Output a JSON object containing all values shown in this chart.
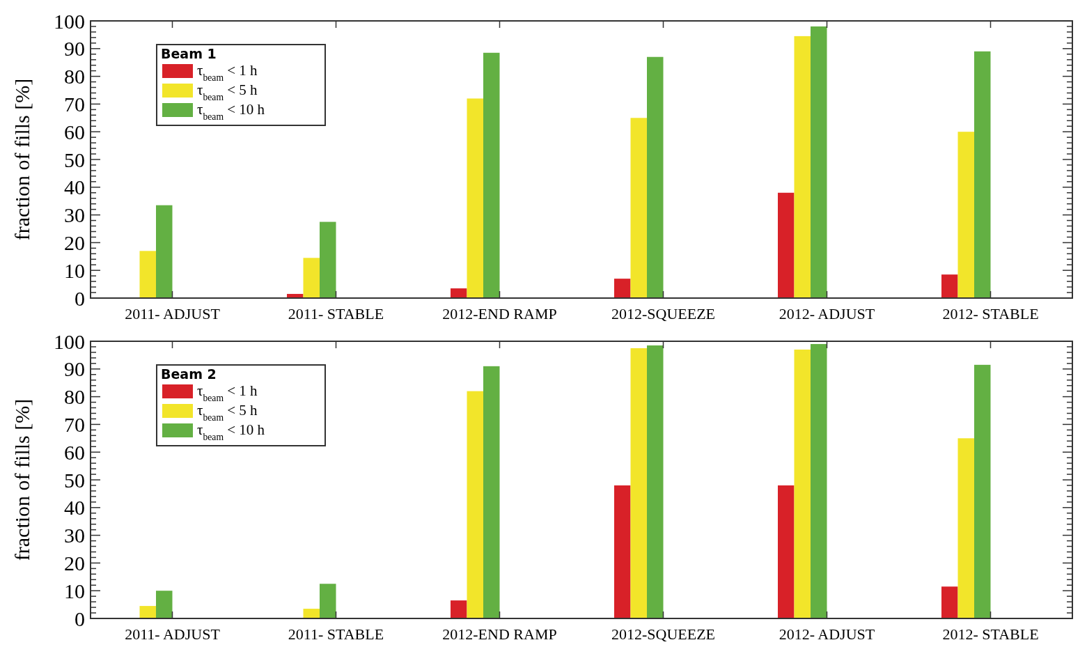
{
  "chart_data": [
    {
      "type": "bar",
      "legend_title": "Beam 1",
      "ylabel": "fraction of fills [%]",
      "categories": [
        "2011- ADJUST",
        "2011- STABLE",
        "2012-END RAMP",
        "2012-SQUEEZE",
        "2012- ADJUST",
        "2012- STABLE"
      ],
      "series": [
        {
          "name": "τ$_{beam}$ < 1 h",
          "color": "#d82128",
          "values": [
            0,
            1.5,
            3.5,
            7,
            38,
            8.5
          ]
        },
        {
          "name": "τ$_{beam}$ < 5 h",
          "color": "#f2e52a",
          "values": [
            17,
            14.5,
            72,
            65,
            94.5,
            60
          ]
        },
        {
          "name": "τ$_{beam}$ < 10 h",
          "color": "#63b043",
          "values": [
            33.5,
            27.5,
            88.5,
            87,
            98,
            89
          ]
        }
      ],
      "ylim": [
        0,
        100
      ],
      "yticks": [
        0,
        {
          "value": 2,
          "label": null
        },
        {
          "value": 4,
          "label": null
        },
        {
          "value": 6,
          "label": null
        },
        {
          "value": 8,
          "label": null
        },
        10,
        {
          "value": 12,
          "label": null
        },
        {
          "value": 14,
          "label": null
        },
        {
          "value": 16,
          "label": null
        },
        {
          "value": 18,
          "label": null
        },
        20,
        {
          "value": 22,
          "label": null
        },
        {
          "value": 24,
          "label": null
        },
        {
          "value": 26,
          "label": null
        },
        {
          "value": 28,
          "label": null
        },
        30,
        {
          "value": 32,
          "label": null
        },
        {
          "value": 34,
          "label": null
        },
        {
          "value": 36,
          "label": null
        },
        {
          "value": 38,
          "label": null
        },
        40,
        {
          "value": 42,
          "label": null
        },
        {
          "value": 44,
          "label": null
        },
        {
          "value": 46,
          "label": null
        },
        {
          "value": 48,
          "label": null
        },
        50,
        {
          "value": 52,
          "label": null
        },
        {
          "value": 54,
          "label": null
        },
        {
          "value": 56,
          "label": null
        },
        {
          "value": 58,
          "label": null
        },
        60,
        {
          "value": 62,
          "label": null
        },
        {
          "value": 64,
          "label": null
        },
        {
          "value": 66,
          "label": null
        },
        {
          "value": 68,
          "label": null
        },
        70,
        {
          "value": 72,
          "label": null
        },
        {
          "value": 74,
          "label": null
        },
        {
          "value": 76,
          "label": null
        },
        {
          "value": 78,
          "label": null
        },
        80,
        {
          "value": 82,
          "label": null
        },
        {
          "value": 84,
          "label": null
        },
        {
          "value": 86,
          "label": null
        },
        {
          "value": 88,
          "label": null
        },
        90,
        {
          "value": 92,
          "label": null
        },
        {
          "value": 94,
          "label": null
        },
        {
          "value": 96,
          "label": null
        },
        {
          "value": 98,
          "label": null
        },
        100
      ],
      "legend": "top left",
      "grid": false
    },
    {
      "type": "bar",
      "legend_title": "Beam 2",
      "ylabel": "fraction of fills [%]",
      "categories": [
        "2011- ADJUST",
        "2011- STABLE",
        "2012-END RAMP",
        "2012-SQUEEZE",
        "2012- ADJUST",
        "2012- STABLE"
      ],
      "series": [
        {
          "name": "τ$_{beam}$ < 1 h",
          "color": "#d82128",
          "values": [
            null,
            0,
            6.5,
            48,
            48,
            11.5
          ]
        },
        {
          "name": "τ$_{beam}$ < 5 h",
          "color": "#f2e52a",
          "values": [
            4.5,
            3.5,
            82,
            97.5,
            97,
            65
          ]
        },
        {
          "name": "τ$_{beam}$ < 10 h",
          "color": "#63b043",
          "values": [
            10,
            12.5,
            91,
            98.5,
            99,
            91.5
          ]
        }
      ],
      "ylim": [
        0,
        100
      ],
      "yticks": [
        0,
        {
          "value": 2,
          "label": null
        },
        {
          "value": 4,
          "label": null
        },
        {
          "value": 6,
          "label": null
        },
        {
          "value": 8,
          "label": null
        },
        10,
        {
          "value": 12,
          "label": null
        },
        {
          "value": 14,
          "label": null
        },
        {
          "value": 16,
          "label": null
        },
        {
          "value": 18,
          "label": null
        },
        20,
        {
          "value": 22,
          "label": null
        },
        {
          "value": 24,
          "label": null
        },
        {
          "value": 26,
          "label": null
        },
        {
          "value": 28,
          "label": null
        },
        30,
        {
          "value": 32,
          "label": null
        },
        {
          "value": 34,
          "label": null
        },
        {
          "value": 36,
          "label": null
        },
        {
          "value": 38,
          "label": null
        },
        40,
        {
          "value": 42,
          "label": null
        },
        {
          "value": 44,
          "label": null
        },
        {
          "value": 46,
          "label": null
        },
        {
          "value": 48,
          "label": null
        },
        50,
        {
          "value": 52,
          "label": null
        },
        {
          "value": 54,
          "label": null
        },
        {
          "value": 56,
          "label": null
        },
        {
          "value": 58,
          "label": null
        },
        60,
        {
          "value": 62,
          "label": null
        },
        {
          "value": 64,
          "label": null
        },
        {
          "value": 66,
          "label": null
        },
        {
          "value": 68,
          "label": null
        },
        70,
        {
          "value": 72,
          "label": null
        },
        {
          "value": 74,
          "label": null
        },
        {
          "value": 76,
          "label": null
        },
        {
          "value": 78,
          "label": null
        },
        80,
        {
          "value": 82,
          "label": null
        },
        {
          "value": 84,
          "label": null
        },
        {
          "value": 86,
          "label": null
        },
        {
          "value": 88,
          "label": null
        },
        90,
        {
          "value": 92,
          "label": null
        },
        {
          "value": 94,
          "label": null
        },
        {
          "value": 96,
          "label": null
        },
        {
          "value": 98,
          "label": null
        },
        100
      ],
      "legend": "top left",
      "grid": false
    }
  ]
}
